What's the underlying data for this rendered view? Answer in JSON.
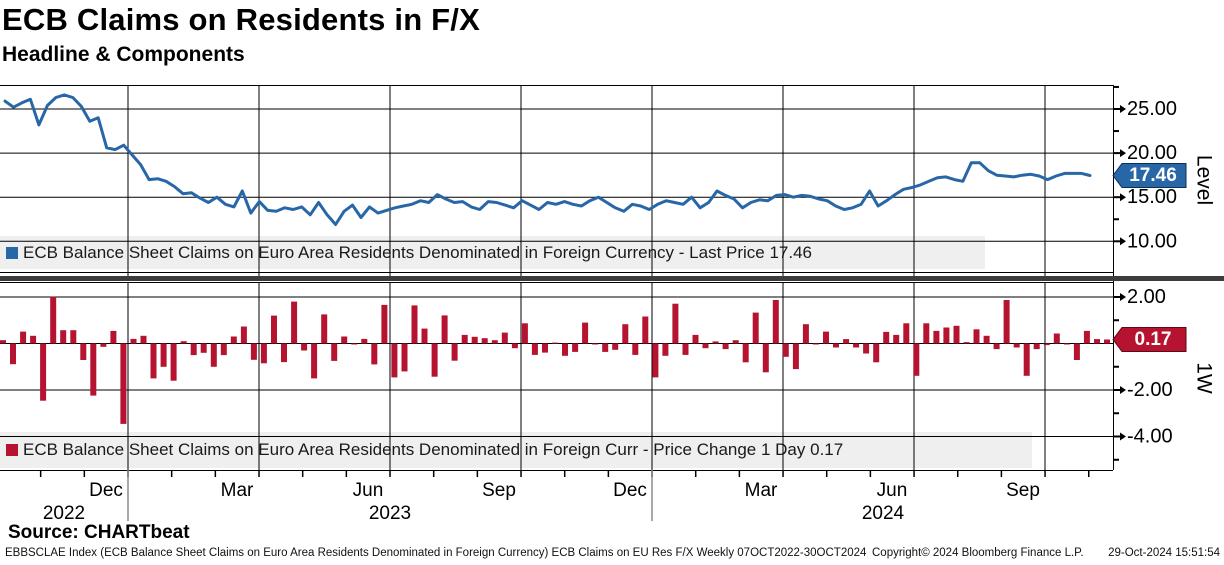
{
  "header": {
    "title": "ECB Claims on Residents in F/X",
    "subtitle": "Headline & Components"
  },
  "panels": {
    "level": {
      "legend": "ECB Balance Sheet Claims on Euro Area Residents Denominated in Foreign Currency - Last Price 17.46",
      "axis_label": "Level",
      "last_price_label": "17.46",
      "color": "#2767a8",
      "swatch_icon": "blue-square-icon"
    },
    "change": {
      "legend": "ECB Balance Sheet Claims on Euro Area Residents Denominated in Foreign Curr - Price Change 1 Day 0.17",
      "axis_label": "1W",
      "last_price_label": "0.17",
      "color": "#b5132f",
      "swatch_icon": "red-square-icon"
    }
  },
  "x_axis": {
    "month_labels": [
      "Dec",
      "Mar",
      "Jun",
      "Sep",
      "Dec",
      "Mar",
      "Jun",
      "Sep"
    ],
    "year_labels": [
      "2022",
      "2023",
      "2024"
    ]
  },
  "chart_data": [
    {
      "type": "line",
      "name": "ECB Balance Sheet Claims on Euro Area Residents Denominated in Foreign Currency",
      "ylabel": "Level",
      "yticks": [
        25,
        20,
        15,
        10
      ],
      "ytick_labels": [
        "25.00",
        "20.00",
        "15.00",
        "10.00"
      ],
      "ylim": [
        7.2,
        27.7
      ],
      "last_price": 17.46,
      "color": "#2767a8",
      "frequency": "Weekly",
      "period": "07OCT2022-30OCT2024",
      "values": [
        25.9,
        25.2,
        25.7,
        26.1,
        23.2,
        25.4,
        26.3,
        26.6,
        26.3,
        25.3,
        23.6,
        24.0,
        20.6,
        20.4,
        20.9,
        19.8,
        18.7,
        17.0,
        17.1,
        16.8,
        16.2,
        15.4,
        15.5,
        14.9,
        14.4,
        15.0,
        14.2,
        13.9,
        15.7,
        13.2,
        14.5,
        13.5,
        13.4,
        13.8,
        13.6,
        13.9,
        13.0,
        14.4,
        13.0,
        11.9,
        13.4,
        14.1,
        12.7,
        13.9,
        13.2,
        13.5,
        13.8,
        14.0,
        14.2,
        14.6,
        14.4,
        15.3,
        14.8,
        14.4,
        14.5,
        13.9,
        13.6,
        14.5,
        14.4,
        14.1,
        13.8,
        14.6,
        14.1,
        13.6,
        14.4,
        14.2,
        14.5,
        14.2,
        14.0,
        14.6,
        15.0,
        14.4,
        13.8,
        13.4,
        14.2,
        14.0,
        13.6,
        14.2,
        14.6,
        14.4,
        14.2,
        15.0,
        13.8,
        14.4,
        15.7,
        15.2,
        14.8,
        13.8,
        14.4,
        14.7,
        14.6,
        15.2,
        15.3,
        15.0,
        15.2,
        15.1,
        14.8,
        14.6,
        14.0,
        13.6,
        13.8,
        14.2,
        15.7,
        14.0,
        14.6,
        15.3,
        15.9,
        16.1,
        16.4,
        16.8,
        17.2,
        17.3,
        17.0,
        16.8,
        18.9,
        18.9,
        18.0,
        17.5,
        17.4,
        17.3,
        17.5,
        17.6,
        17.4,
        17.0,
        17.4,
        17.7,
        17.7,
        17.7,
        17.46
      ]
    },
    {
      "type": "bar",
      "name": "ECB Balance Sheet Claims on Euro Area Residents Denominated in Foreign Curr - Price Change 1 Day",
      "ylabel": "1W",
      "yticks": [
        2,
        -2,
        -4
      ],
      "ytick_labels": [
        "2.00",
        "-2.00",
        "-4.00"
      ],
      "ylim": [
        -5.3,
        2.65
      ],
      "last_price": 0.17,
      "color": "#b5132f",
      "values": [
        0.14,
        -0.89,
        0.51,
        0.33,
        -2.46,
        2.01,
        0.57,
        0.57,
        -0.71,
        -2.24,
        -0.14,
        0.54,
        -3.46,
        0.2,
        0.33,
        -1.5,
        -1.0,
        -1.6,
        0.1,
        -0.5,
        -0.4,
        -1.0,
        -0.5,
        0.3,
        0.73,
        -0.7,
        -0.85,
        1.2,
        -0.8,
        1.8,
        -0.3,
        -1.5,
        1.25,
        -0.75,
        0.3,
        -0.03,
        0.2,
        -0.9,
        1.66,
        -1.46,
        -1.2,
        1.64,
        0.64,
        -1.43,
        1.21,
        -0.74,
        0.37,
        0.29,
        0.23,
        0.14,
        0.47,
        -0.2,
        0.87,
        -0.49,
        -0.39,
        0.04,
        -0.53,
        -0.36,
        0.9,
        -0.04,
        -0.36,
        -0.27,
        0.83,
        -0.49,
        1.16,
        -1.46,
        -0.53,
        1.71,
        -0.49,
        0.37,
        -0.2,
        0.09,
        -0.24,
        0.14,
        -0.81,
        1.33,
        -1.24,
        1.87,
        -0.57,
        -1.1,
        0.83,
        -0.04,
        0.51,
        -0.17,
        0.19,
        -0.17,
        -0.43,
        -0.81,
        0.5,
        0.37,
        0.87,
        -1.39,
        0.87,
        0.54,
        0.69,
        0.76,
        0.06,
        0.61,
        0.33,
        -0.24,
        1.87,
        -0.17,
        -1.39,
        -0.24,
        -0.07,
        0.43,
        -0.04,
        -0.71,
        0.54,
        0.19,
        0.17
      ]
    }
  ],
  "footer": {
    "source": "Source: CHARTbeat",
    "description": "EBBSCLAE Index (ECB Balance Sheet Claims on Euro Area Residents Denominated in Foreign Currency) ECB Claims on EU Res F/X  Weekly 07OCT2022-30OCT2024",
    "copyright": "Copyright© 2024 Bloomberg Finance L.P.",
    "timestamp": "29-Oct-2024 15:51:54"
  }
}
